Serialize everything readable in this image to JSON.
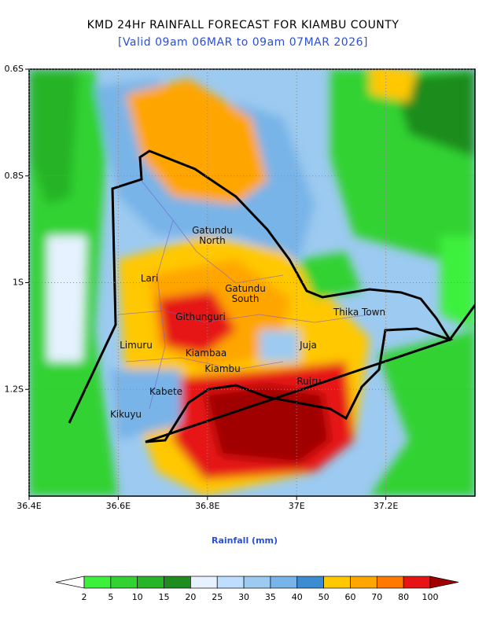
{
  "title": "KMD 24Hr RAINFALL FORECAST FOR KIAMBU COUNTY",
  "subtitle": "[Valid 09am 06MAR to 09am 07MAR 2026]",
  "map": {
    "xlim": [
      36.4,
      37.4
    ],
    "ylim": [
      -1.4,
      -0.6
    ],
    "xticks": [
      {
        "value": 36.4,
        "label": "36.4E"
      },
      {
        "value": 36.6,
        "label": "36.6E"
      },
      {
        "value": 36.8,
        "label": "36.8E"
      },
      {
        "value": 37,
        "label": "37E"
      },
      {
        "value": 37.2,
        "label": "37.2E"
      }
    ],
    "yticks": [
      {
        "value": -0.6,
        "label": "0.6S"
      },
      {
        "value": -0.8,
        "label": "0.8S"
      },
      {
        "value": -1,
        "label": "1S"
      },
      {
        "value": -1.2,
        "label": "1.2S"
      }
    ],
    "places": [
      "Gatundu North",
      "Lari",
      "Gatundu South",
      "Githunguri",
      "Thika Town",
      "Limuru",
      "Kiambaa",
      "Juja",
      "Kiambu",
      "Ruiru",
      "Kabete",
      "Kikuyu"
    ]
  },
  "colorbar": {
    "label": "Rainfall (mm)",
    "levels": [
      2,
      5,
      10,
      15,
      20,
      25,
      30,
      35,
      40,
      50,
      60,
      70,
      80,
      100
    ],
    "colors": [
      "#ffffff",
      "#3cf03c",
      "#32d232",
      "#28b428",
      "#1e8c1e",
      "#e6f2ff",
      "#bedeff",
      "#9ccaf0",
      "#78b4e8",
      "#3c8cd2",
      "#ffc800",
      "#ffa500",
      "#ff7800",
      "#e61414",
      "#a00000"
    ]
  }
}
